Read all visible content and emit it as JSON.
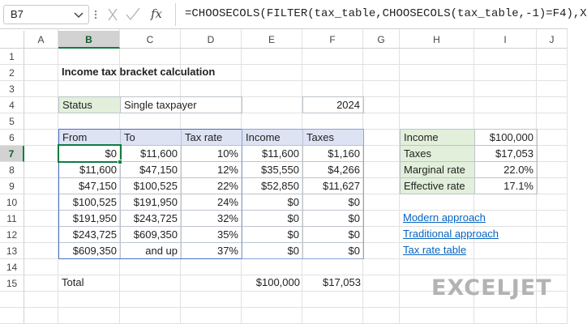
{
  "formula_bar": {
    "name_box": "B7",
    "function_label": "fx",
    "formula": "=CHOOSECOLS(FILTER(tax_table,CHOOSECOLS(tax_table,-1)=F4),X"
  },
  "column_headers": [
    "A",
    "B",
    "C",
    "D",
    "E",
    "F",
    "G",
    "H",
    "I",
    "J"
  ],
  "row_headers": [
    "1",
    "2",
    "3",
    "4",
    "5",
    "6",
    "7",
    "8",
    "9",
    "10",
    "11",
    "12",
    "13",
    "14",
    "15"
  ],
  "sheet": {
    "title": "Income tax bracket calculation",
    "status_label": "Status",
    "status_value": "Single taxpayer",
    "year": "2024",
    "table": {
      "headers": [
        "From",
        "To",
        "Tax rate",
        "Income",
        "Taxes"
      ],
      "rows": [
        [
          "$0",
          "$11,600",
          "10%",
          "$11,600",
          "$1,160"
        ],
        [
          "$11,600",
          "$47,150",
          "12%",
          "$35,550",
          "$4,266"
        ],
        [
          "$47,150",
          "$100,525",
          "22%",
          "$52,850",
          "$11,627"
        ],
        [
          "$100,525",
          "$191,950",
          "24%",
          "$0",
          "$0"
        ],
        [
          "$191,950",
          "$243,725",
          "32%",
          "$0",
          "$0"
        ],
        [
          "$243,725",
          "$609,350",
          "35%",
          "$0",
          "$0"
        ],
        [
          "$609,350",
          "and up",
          "37%",
          "$0",
          "$0"
        ]
      ]
    },
    "summary": [
      [
        "Income",
        "$100,000"
      ],
      [
        "Taxes",
        "$17,053"
      ],
      [
        "Marginal rate",
        "22.0%"
      ],
      [
        "Effective rate",
        "17.1%"
      ]
    ],
    "links": [
      "Modern approach",
      "Traditional approach",
      "Tax rate table"
    ],
    "total": {
      "label": "Total",
      "income": "$100,000",
      "taxes": "$17,053"
    }
  },
  "logo": "EXCELJET"
}
